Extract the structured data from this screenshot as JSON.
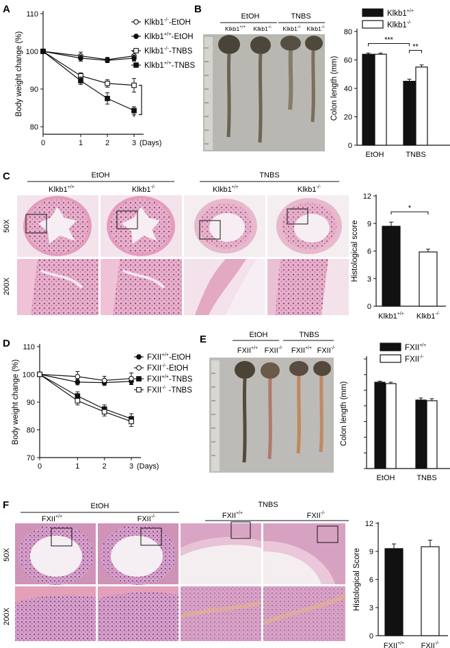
{
  "panels": {
    "A": {
      "letter": "A"
    },
    "B": {
      "letter": "B"
    },
    "C": {
      "letter": "C"
    },
    "D": {
      "letter": "D"
    },
    "E": {
      "letter": "E"
    },
    "F": {
      "letter": "F"
    }
  },
  "histology_c": {
    "groups": [
      "EtOH",
      "TNBS"
    ],
    "genotypes": [
      "Klkb1",
      "Klkb1"
    ],
    "genotype_sups": [
      "+/+",
      "-/-"
    ],
    "magnifications": [
      "50X",
      "200X"
    ]
  },
  "histology_f": {
    "groups": [
      "EtOH",
      "TNBS"
    ],
    "genotypes": [
      "FXII",
      "FXII"
    ],
    "genotype_sups": [
      "+/+",
      "-/-"
    ],
    "magnifications": [
      "50X",
      "200X"
    ]
  },
  "photo_b": {
    "groups": [
      "EtOH",
      "TNBS"
    ],
    "genotypes": [
      "Klkb1",
      "Klkb1",
      "Klkb1",
      "Klkb1"
    ],
    "genotype_sups": [
      "+/+",
      "-/-",
      "-/-",
      "-/-"
    ]
  },
  "photo_e": {
    "groups": [
      "EtOH",
      "TNBS"
    ],
    "genotypes": [
      "FXII",
      "FXII",
      "FXII",
      "FXII"
    ],
    "genotype_sups": [
      "+/+",
      "-/-",
      "+/+",
      "-/-"
    ]
  },
  "colors": {
    "black": "#111111",
    "white": "#ffffff",
    "tissue": "#e3a8c2",
    "tissue_dark": "#b8678f",
    "photo_bg": "#b9b7b2"
  },
  "chart_data": [
    {
      "id": "A",
      "type": "line",
      "xlabel": "",
      "x_unit": "(Days)",
      "ylabel": "Body weight change (%)",
      "x": [
        0,
        1,
        2,
        3
      ],
      "xticks": [
        "0",
        "1",
        "2",
        "3"
      ],
      "xlim": [
        0,
        3
      ],
      "yticks": [
        "80",
        "90",
        "100",
        "110"
      ],
      "ylim": [
        78,
        110
      ],
      "series": [
        {
          "base": "Klkb1",
          "sup": "-/-",
          "suffix": "-EtOH",
          "marker": "open-circle",
          "values": [
            100,
            98.8,
            97.8,
            98.8
          ],
          "errors": [
            0.5,
            1.0,
            0.6,
            1.2
          ]
        },
        {
          "base": "Klkb1",
          "sup": "+/+",
          "suffix": "-EtOH",
          "marker": "filled-circle",
          "values": [
            100,
            98.2,
            97.6,
            98.2
          ],
          "errors": [
            0.5,
            0.8,
            0.6,
            0.8
          ]
        },
        {
          "base": "Klkb1",
          "sup": "-/-",
          "suffix": "-TNBS",
          "marker": "open-square",
          "values": [
            100,
            93.5,
            91.5,
            91.0
          ],
          "errors": [
            0.5,
            0.8,
            1.0,
            1.8
          ]
        },
        {
          "base": "Klkb1",
          "sup": "+/+",
          "suffix": "-TNBS",
          "marker": "filled-square",
          "values": [
            100,
            92.2,
            87.5,
            84.3
          ],
          "errors": [
            0.5,
            1.0,
            1.5,
            1.0
          ]
        }
      ],
      "annotation": "*"
    },
    {
      "id": "B",
      "type": "bar",
      "categories": [
        "EtOH",
        "TNBS"
      ],
      "ylabel": "Colon length (mm)",
      "yticks": [
        "0",
        "20",
        "40",
        "60",
        "80"
      ],
      "ylim": [
        0,
        80
      ],
      "series": [
        {
          "base": "Klkb1",
          "sup": "+/+",
          "fill": "black",
          "values": [
            64,
            45
          ],
          "errors": [
            0.8,
            1.5
          ]
        },
        {
          "base": "Klkb1",
          "sup": "-/-",
          "fill": "white",
          "values": [
            64,
            55
          ],
          "errors": [
            0.8,
            1.5
          ]
        }
      ],
      "annotations": [
        "***",
        "**"
      ]
    },
    {
      "id": "C",
      "type": "bar",
      "categories": [
        "Klkb1",
        "Klkb1"
      ],
      "category_sups": [
        "+/+",
        "-/-"
      ],
      "ylabel": "Histological score",
      "yticks": [
        "0",
        "3",
        "6",
        "9",
        "12"
      ],
      "ylim": [
        0,
        12
      ],
      "series": [
        {
          "values": [
            8.7,
            5.9
          ],
          "errors": [
            0.45,
            0.3
          ],
          "fills": [
            "black",
            "white"
          ]
        }
      ],
      "annotation": "*"
    },
    {
      "id": "D",
      "type": "line",
      "xlabel": "",
      "x_unit": "(Days)",
      "ylabel": "Body weight change (%)",
      "x": [
        0,
        1,
        2,
        3
      ],
      "xticks": [
        "0",
        "1",
        "2",
        "3"
      ],
      "xlim": [
        0,
        3
      ],
      "yticks": [
        "70",
        "80",
        "90",
        "100",
        "110"
      ],
      "ylim": [
        70,
        110
      ],
      "series": [
        {
          "base": "FXII",
          "sup": "+/+",
          "suffix": "-EtOH",
          "marker": "filled-circle",
          "values": [
            100,
            97.2,
            97.0,
            97.5
          ],
          "errors": [
            0.6,
            1.0,
            1.0,
            1.2
          ]
        },
        {
          "base": "FXII",
          "sup": "-/-",
          "suffix": "-EtOH",
          "marker": "open-circle",
          "values": [
            100,
            99.2,
            97.8,
            98.5
          ],
          "errors": [
            0.6,
            1.8,
            1.5,
            2.0
          ]
        },
        {
          "base": "FXII",
          "sup": "+/+",
          "suffix": "-TNBS",
          "marker": "filled-square",
          "values": [
            100,
            92.2,
            87.5,
            84.0
          ],
          "errors": [
            0.6,
            1.5,
            1.5,
            1.8
          ]
        },
        {
          "base": "FXII",
          "sup": "-/-",
          "suffix": " -TNBS",
          "marker": "open-square",
          "values": [
            100,
            90.5,
            86.5,
            83.0
          ],
          "errors": [
            0.6,
            1.5,
            1.5,
            1.8
          ]
        }
      ]
    },
    {
      "id": "E",
      "type": "bar",
      "categories": [
        "EtOH",
        "TNBS"
      ],
      "ylabel": "Colon length (mm)",
      "yticks": [
        "",
        "",
        "",
        "",
        "",
        "",
        "",
        ""
      ],
      "ylim": [
        0,
        8
      ],
      "series": [
        {
          "base": "FXII",
          "sup": "+/+",
          "fill": "black",
          "values": [
            6.3,
            5.0
          ],
          "errors": [
            0.08,
            0.15
          ]
        },
        {
          "base": "FXII",
          "sup": "-/-",
          "fill": "white",
          "values": [
            6.2,
            4.95
          ],
          "errors": [
            0.1,
            0.15
          ]
        }
      ]
    },
    {
      "id": "F",
      "type": "bar",
      "categories": [
        "FXII",
        "FXII"
      ],
      "category_sups": [
        "+/+",
        "-/-"
      ],
      "ylabel": "Histological Score",
      "yticks": [
        "0",
        "3",
        "6",
        "9",
        "12"
      ],
      "ylim": [
        0,
        12
      ],
      "series": [
        {
          "values": [
            9.3,
            9.5
          ],
          "errors": [
            0.5,
            0.7
          ],
          "fills": [
            "black",
            "white"
          ]
        }
      ]
    }
  ]
}
